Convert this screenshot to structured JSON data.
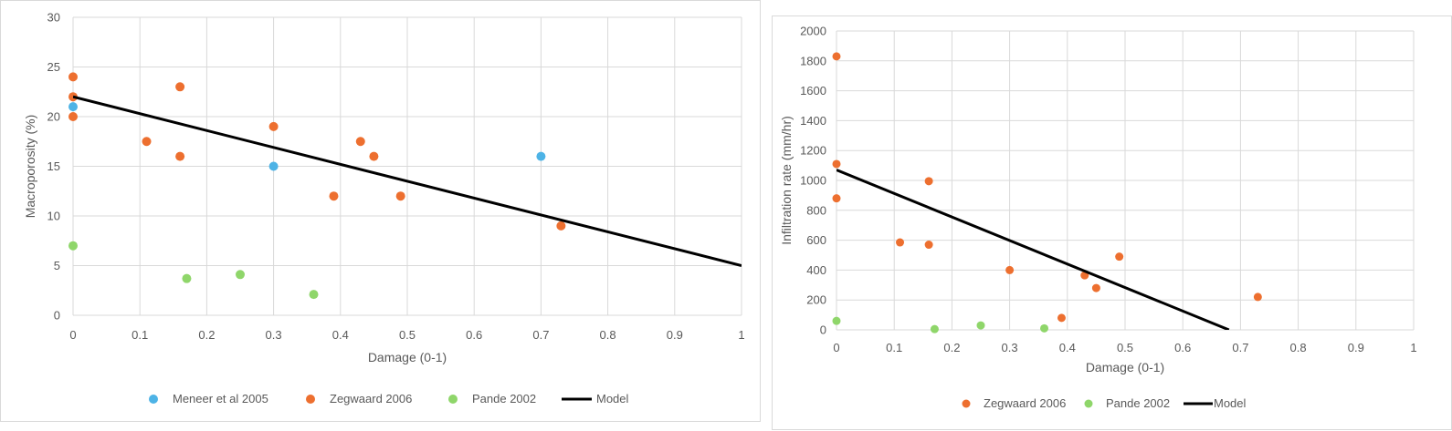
{
  "chart_data": [
    {
      "type": "scatter",
      "title": "",
      "xlabel": "Damage (0-1)",
      "ylabel": "Macroporosity (%)",
      "xlim": [
        0,
        1
      ],
      "ylim": [
        0,
        30
      ],
      "x_ticks": [
        "0",
        "0.1",
        "0.2",
        "0.3",
        "0.4",
        "0.5",
        "0.6",
        "0.7",
        "0.8",
        "0.9",
        "1"
      ],
      "y_ticks": [
        "0",
        "5",
        "10",
        "15",
        "20",
        "25",
        "30"
      ],
      "grid": true,
      "legend_position": "bottom",
      "series": [
        {
          "name": "Meneer et al 2005",
          "color": "#4db3e6",
          "marker": "circle",
          "points": [
            [
              0,
              21
            ],
            [
              0.3,
              15
            ],
            [
              0.7,
              16
            ]
          ]
        },
        {
          "name": "Zegwaard 2006",
          "color": "#ed6f2f",
          "marker": "circle",
          "points": [
            [
              0,
              24
            ],
            [
              0,
              22
            ],
            [
              0,
              20
            ],
            [
              0.11,
              17.5
            ],
            [
              0.16,
              23
            ],
            [
              0.16,
              16
            ],
            [
              0.3,
              19
            ],
            [
              0.39,
              12
            ],
            [
              0.43,
              17.5
            ],
            [
              0.45,
              16
            ],
            [
              0.49,
              12
            ],
            [
              0.73,
              9
            ]
          ]
        },
        {
          "name": "Pande 2002",
          "color": "#8fd66a",
          "marker": "circle",
          "points": [
            [
              0,
              7
            ],
            [
              0.17,
              3.7
            ],
            [
              0.25,
              4.1
            ],
            [
              0.36,
              2.1
            ]
          ]
        },
        {
          "name": "Model",
          "color": "#000000",
          "marker": "line",
          "points": [
            [
              0,
              22
            ],
            [
              1,
              5
            ]
          ]
        }
      ]
    },
    {
      "type": "scatter",
      "title": "",
      "xlabel": "Damage (0-1)",
      "ylabel": "Infiltration rate (mm/hr)",
      "xlim": [
        0,
        1
      ],
      "ylim": [
        0,
        2000
      ],
      "x_ticks": [
        "0",
        "0.1",
        "0.2",
        "0.3",
        "0.4",
        "0.5",
        "0.6",
        "0.7",
        "0.8",
        "0.9",
        "1"
      ],
      "y_ticks": [
        "0",
        "200",
        "400",
        "600",
        "800",
        "1000",
        "1200",
        "1400",
        "1600",
        "1800",
        "2000"
      ],
      "grid": true,
      "legend_position": "bottom",
      "series": [
        {
          "name": "Zegwaard 2006",
          "color": "#ed6f2f",
          "marker": "circle",
          "points": [
            [
              0,
              1830
            ],
            [
              0,
              1110
            ],
            [
              0,
              880
            ],
            [
              0.11,
              585
            ],
            [
              0.16,
              995
            ],
            [
              0.16,
              570
            ],
            [
              0.3,
              400
            ],
            [
              0.39,
              80
            ],
            [
              0.43,
              365
            ],
            [
              0.45,
              280
            ],
            [
              0.49,
              490
            ],
            [
              0.73,
              220
            ]
          ]
        },
        {
          "name": "Pande 2002",
          "color": "#8fd66a",
          "marker": "circle",
          "points": [
            [
              0,
              60
            ],
            [
              0.17,
              5
            ],
            [
              0.25,
              30
            ],
            [
              0.36,
              10
            ]
          ]
        },
        {
          "name": "Model",
          "color": "#000000",
          "marker": "line",
          "points": [
            [
              0,
              1070
            ],
            [
              0.68,
              0
            ]
          ]
        }
      ]
    }
  ]
}
